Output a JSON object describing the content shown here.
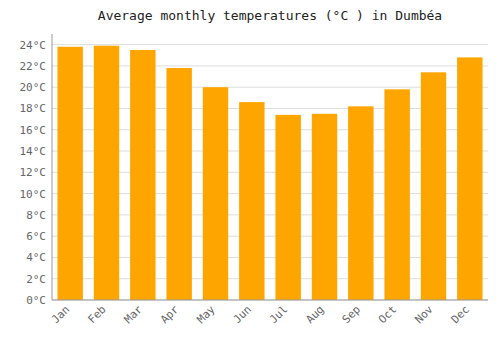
{
  "chart_data": {
    "type": "bar",
    "title": "Average monthly temperatures (°C ) in Dumbéa",
    "categories": [
      "Jan",
      "Feb",
      "Mar",
      "Apr",
      "May",
      "Jun",
      "Jul",
      "Aug",
      "Sep",
      "Oct",
      "Nov",
      "Dec"
    ],
    "values": [
      23.8,
      23.9,
      23.5,
      21.8,
      20.0,
      18.6,
      17.4,
      17.5,
      18.2,
      19.8,
      21.4,
      22.8
    ],
    "color": "#FFA500",
    "ylim": [
      0,
      25
    ],
    "yticks": [
      {
        "value": 0,
        "label": "0°C"
      },
      {
        "value": 2,
        "label": "2°C"
      },
      {
        "value": 4,
        "label": "4°C"
      },
      {
        "value": 6,
        "label": "6°C"
      },
      {
        "value": 8,
        "label": "8°C"
      },
      {
        "value": 10,
        "label": "10°C"
      },
      {
        "value": 12,
        "label": "12°C"
      },
      {
        "value": 14,
        "label": "14°C"
      },
      {
        "value": 16,
        "label": "16°C"
      },
      {
        "value": 18,
        "label": "18°C"
      },
      {
        "value": 20,
        "label": "20°C"
      },
      {
        "value": 22,
        "label": "22°C"
      },
      {
        "value": 24,
        "label": "24°C"
      }
    ],
    "grid": true
  }
}
